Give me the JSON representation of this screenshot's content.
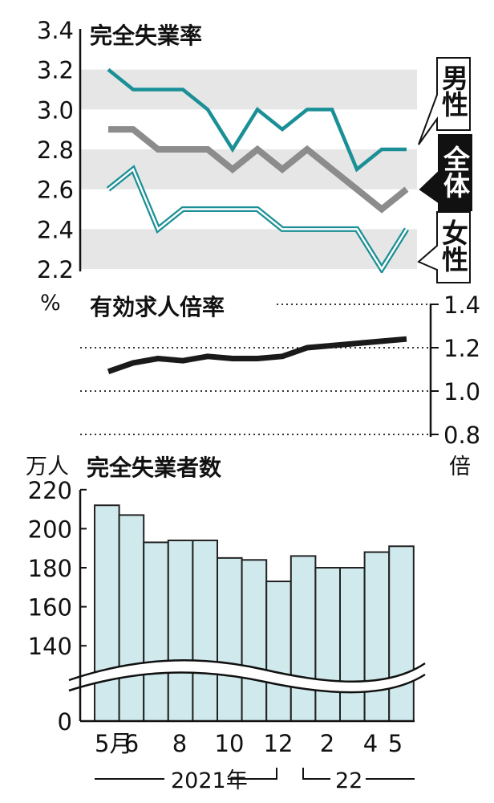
{
  "colors": {
    "male": "#1a8f96",
    "total": "#8c8c8c",
    "female": "#1a8f96",
    "jobs": "#1a1a1a",
    "band": "#e6e6e6",
    "bar_fill": "#cfe9ec",
    "bar_stroke": "#222222"
  },
  "chart_data": [
    {
      "type": "line",
      "title": "完全失業率",
      "ylabel": "%",
      "ylim": [
        2.2,
        3.4
      ],
      "yticks": [
        "3.4",
        "3.2",
        "3.0",
        "2.8",
        "2.6",
        "2.4",
        "2.2"
      ],
      "grid": "alternating-bands",
      "categories": [
        "2021-05",
        "2021-06",
        "2021-07",
        "2021-08",
        "2021-09",
        "2021-10",
        "2021-11",
        "2021-12",
        "2022-01",
        "2022-02",
        "2022-03",
        "2022-04",
        "2022-05"
      ],
      "series": [
        {
          "name": "男性",
          "values": [
            3.2,
            3.1,
            3.1,
            3.1,
            3.0,
            2.8,
            3.0,
            2.9,
            3.0,
            3.0,
            2.7,
            2.8,
            2.8
          ]
        },
        {
          "name": "全体",
          "values": [
            2.9,
            2.9,
            2.8,
            2.8,
            2.8,
            2.7,
            2.8,
            2.7,
            2.8,
            2.7,
            2.6,
            2.5,
            2.6
          ]
        },
        {
          "name": "女性",
          "values": [
            2.6,
            2.7,
            2.4,
            2.5,
            2.5,
            2.5,
            2.5,
            2.4,
            2.4,
            2.4,
            2.4,
            2.2,
            2.4
          ]
        }
      ]
    },
    {
      "type": "line",
      "title": "有効求人倍率",
      "ylabel": "倍",
      "ylim": [
        0.8,
        1.4
      ],
      "yticks": [
        "1.4",
        "1.2",
        "1.0",
        "0.8"
      ],
      "grid": "dotted",
      "categories": [
        "2021-05",
        "2021-06",
        "2021-07",
        "2021-08",
        "2021-09",
        "2021-10",
        "2021-11",
        "2021-12",
        "2022-01",
        "2022-02",
        "2022-03",
        "2022-04",
        "2022-05"
      ],
      "series": [
        {
          "values": [
            1.09,
            1.13,
            1.15,
            1.14,
            1.16,
            1.15,
            1.15,
            1.16,
            1.2,
            1.21,
            1.22,
            1.23,
            1.24
          ]
        }
      ]
    },
    {
      "type": "bar",
      "title": "完全失業者数",
      "ylabel": "万人",
      "ylim": [
        0,
        220
      ],
      "axis_break": [
        0,
        130
      ],
      "yticks": [
        "220",
        "200",
        "180",
        "160",
        "140",
        "0"
      ],
      "categories": [
        "2021-05",
        "2021-06",
        "2021-07",
        "2021-08",
        "2021-09",
        "2021-10",
        "2021-11",
        "2021-12",
        "2022-01",
        "2022-02",
        "2022-03",
        "2022-04",
        "2022-05"
      ],
      "values": [
        212,
        207,
        193,
        194,
        194,
        185,
        184,
        173,
        186,
        180,
        180,
        188,
        191
      ],
      "xticks": [
        "5月",
        "6",
        "8",
        "10",
        "12",
        "2",
        "4",
        "5"
      ],
      "year_labels": [
        "2021年",
        "22"
      ]
    }
  ]
}
